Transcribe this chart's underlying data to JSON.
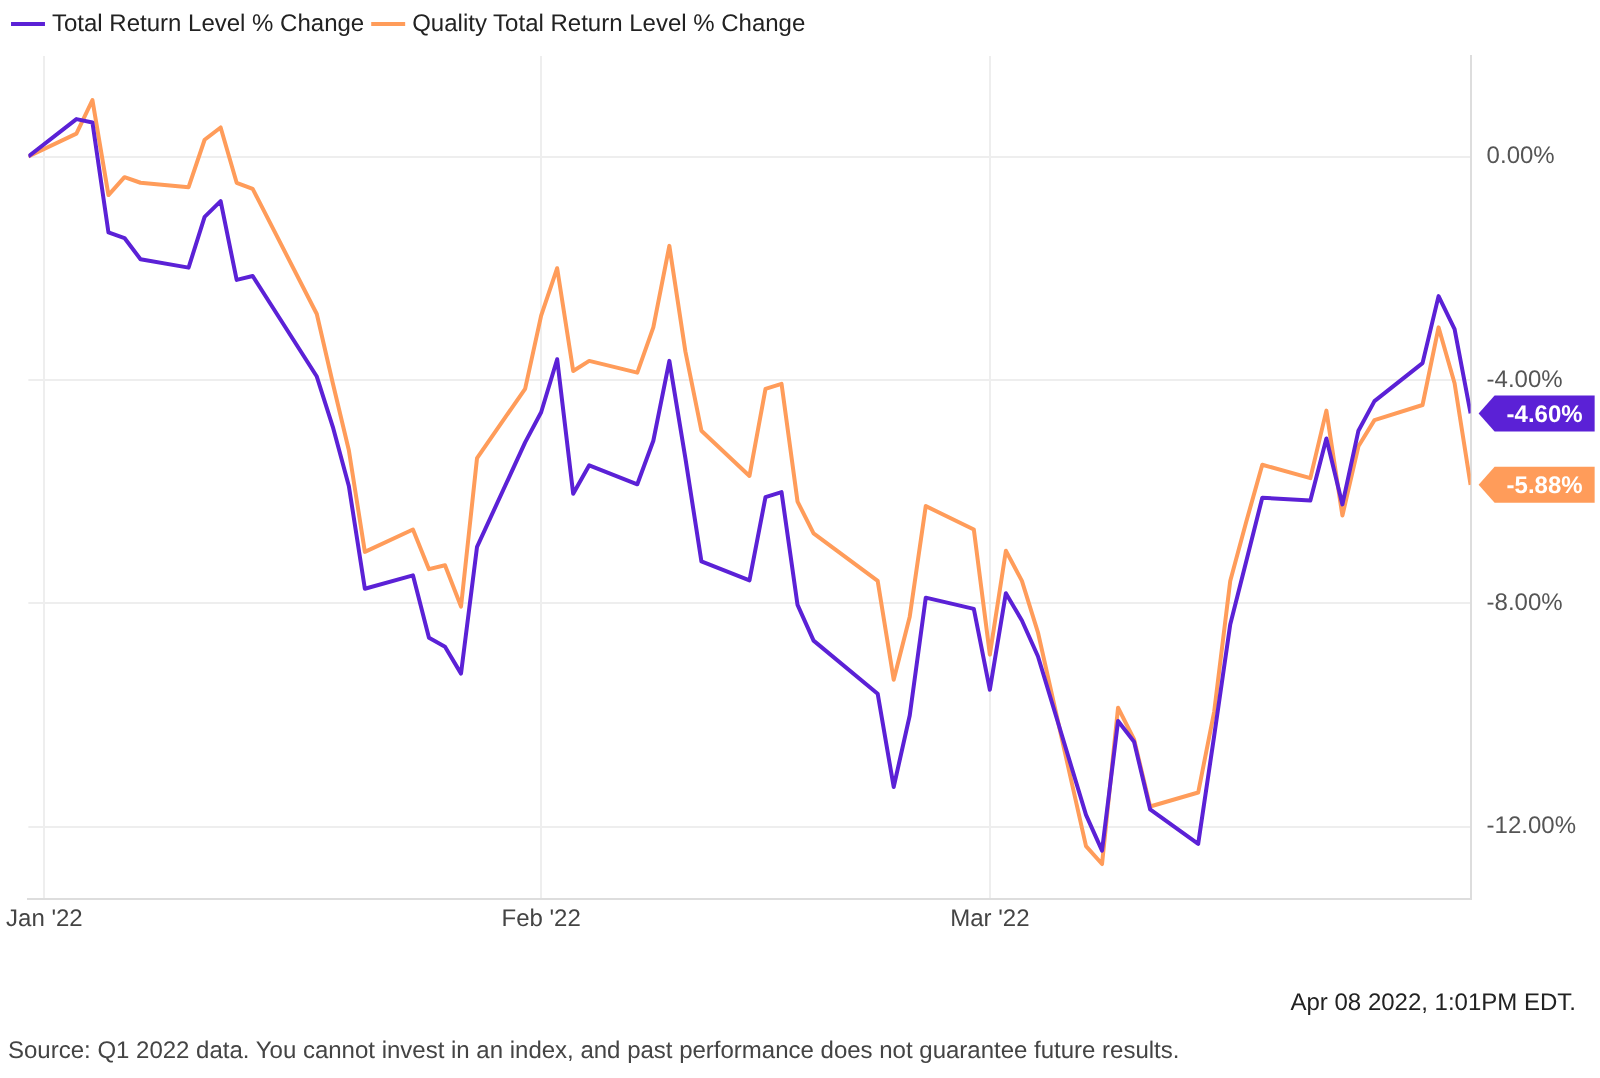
{
  "chart_data": {
    "type": "line",
    "x": [
      "2021-12-31",
      "2022-01-03",
      "2022-01-04",
      "2022-01-05",
      "2022-01-06",
      "2022-01-07",
      "2022-01-10",
      "2022-01-11",
      "2022-01-12",
      "2022-01-13",
      "2022-01-14",
      "2022-01-18",
      "2022-01-19",
      "2022-01-20",
      "2022-01-21",
      "2022-01-24",
      "2022-01-25",
      "2022-01-26",
      "2022-01-27",
      "2022-01-28",
      "2022-01-31",
      "2022-02-01",
      "2022-02-02",
      "2022-02-03",
      "2022-02-04",
      "2022-02-07",
      "2022-02-08",
      "2022-02-09",
      "2022-02-10",
      "2022-02-11",
      "2022-02-14",
      "2022-02-15",
      "2022-02-16",
      "2022-02-17",
      "2022-02-18",
      "2022-02-22",
      "2022-02-23",
      "2022-02-24",
      "2022-02-25",
      "2022-02-28",
      "2022-03-01",
      "2022-03-02",
      "2022-03-03",
      "2022-03-04",
      "2022-03-07",
      "2022-03-08",
      "2022-03-09",
      "2022-03-10",
      "2022-03-11",
      "2022-03-14",
      "2022-03-15",
      "2022-03-16",
      "2022-03-17",
      "2022-03-18",
      "2022-03-21",
      "2022-03-22",
      "2022-03-23",
      "2022-03-24",
      "2022-03-25",
      "2022-03-28",
      "2022-03-29",
      "2022-03-30",
      "2022-03-31"
    ],
    "series": [
      {
        "name": "Total Return Level % Change",
        "color": "#5b21d6",
        "values": [
          0,
          0.67,
          0.61,
          -1.36,
          -1.46,
          -1.84,
          -1.99,
          -1.08,
          -0.8,
          -2.21,
          -2.14,
          -3.94,
          -4.84,
          -5.9,
          -7.74,
          -7.5,
          -8.62,
          -8.78,
          -9.26,
          -6.99,
          -5.12,
          -4.58,
          -3.63,
          -6.04,
          -5.53,
          -5.87,
          -5.09,
          -3.66,
          -5.4,
          -7.25,
          -7.59,
          -6.1,
          -6.01,
          -8.03,
          -8.67,
          -9.62,
          -11.29,
          -10.01,
          -7.9,
          -8.1,
          -9.55,
          -7.82,
          -8.31,
          -8.95,
          -11.79,
          -12.43,
          -10.11,
          -10.48,
          -11.69,
          -12.31,
          -10.37,
          -8.38,
          -7.25,
          -6.11,
          -6.16,
          -5.05,
          -6.23,
          -4.91,
          -4.38,
          -3.7,
          -2.5,
          -3.09,
          -4.6
        ],
        "value_labels": [
          null,
          null,
          null,
          null,
          null,
          null,
          null,
          null,
          null,
          null,
          null,
          null,
          null,
          null,
          null,
          null,
          null,
          null,
          null,
          null,
          null,
          null,
          null,
          null,
          null,
          null,
          null,
          null,
          null,
          null,
          null,
          null,
          null,
          null,
          null,
          null,
          null,
          null,
          null,
          null,
          null,
          null,
          null,
          null,
          null,
          null,
          null,
          null,
          null,
          null,
          null,
          null,
          null,
          null,
          null,
          null,
          null,
          null,
          null,
          null,
          null,
          null,
          "-4.60%"
        ]
      },
      {
        "name": "Quality Total Return Level % Change",
        "color": "#ff9c5a",
        "values": [
          0,
          0.41,
          1.01,
          -0.69,
          -0.37,
          -0.47,
          -0.55,
          0.3,
          0.52,
          -0.47,
          -0.58,
          -2.82,
          -4.06,
          -5.26,
          -7.08,
          -6.68,
          -7.39,
          -7.32,
          -8.06,
          -5.4,
          -4.16,
          -2.85,
          -2.0,
          -3.84,
          -3.66,
          -3.87,
          -3.06,
          -1.6,
          -3.49,
          -4.91,
          -5.72,
          -4.16,
          -4.07,
          -6.18,
          -6.75,
          -7.6,
          -9.37,
          -8.24,
          -6.26,
          -6.68,
          -8.92,
          -7.06,
          -7.6,
          -8.52,
          -12.35,
          -12.67,
          -9.87,
          -10.44,
          -11.64,
          -11.39,
          -9.94,
          -7.6,
          -6.54,
          -5.52,
          -5.76,
          -4.55,
          -6.43,
          -5.19,
          -4.72,
          -4.45,
          -3.06,
          -4.06,
          -5.88
        ],
        "value_labels": [
          null,
          null,
          null,
          null,
          null,
          null,
          null,
          null,
          null,
          null,
          null,
          null,
          null,
          null,
          null,
          null,
          null,
          null,
          null,
          null,
          null,
          null,
          null,
          null,
          null,
          null,
          null,
          null,
          null,
          null,
          null,
          null,
          null,
          null,
          null,
          null,
          null,
          null,
          null,
          null,
          null,
          null,
          null,
          null,
          null,
          null,
          null,
          null,
          null,
          null,
          null,
          null,
          null,
          null,
          null,
          null,
          null,
          null,
          null,
          null,
          null,
          null,
          "-5.88%"
        ]
      }
    ],
    "xlim": [
      "2021-12-31",
      "2022-03-31"
    ],
    "xticks": [
      {
        "value": "2022-01-01",
        "label": "Jan '22"
      },
      {
        "value": "2022-02-01",
        "label": "Feb '22"
      },
      {
        "value": "2022-03-01",
        "label": "Mar '22"
      }
    ],
    "ylim": [
      -13.3,
      1.8
    ],
    "yticks": [
      {
        "value": 0,
        "label": "0.00%"
      },
      {
        "value": -4,
        "label": "-4.00%"
      },
      {
        "value": -8,
        "label": "-8.00%"
      },
      {
        "value": -12,
        "label": "-12.00%"
      }
    ],
    "grid": true,
    "legend": "top left",
    "marker": "none",
    "line_style": "solid",
    "annotations": [
      "Apr 08 2022, 1:01PM EDT.",
      "Source: Q1 2022 data. You cannot invest in an index, and past performance does not guarantee future results."
    ]
  }
}
